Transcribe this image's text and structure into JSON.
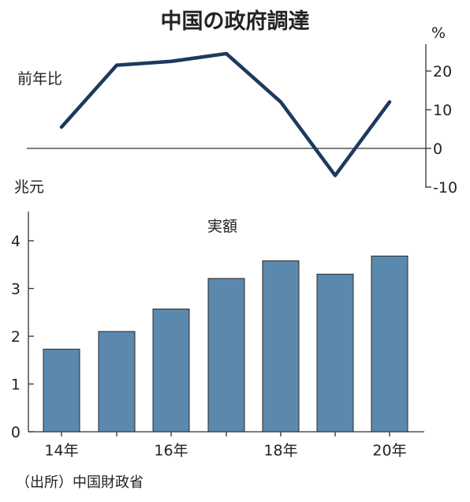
{
  "title": "中国の政府調達",
  "source": "（出所）中国財政省",
  "colors": {
    "line": "#1b3a5e",
    "bar": "#5b88ad",
    "axis": "#333333"
  },
  "chart_data": [
    {
      "type": "line",
      "label": "前年比",
      "unit": "%",
      "x": [
        2014,
        2015,
        2016,
        2017,
        2018,
        2019,
        2020
      ],
      "values": [
        5.5,
        21.5,
        22.5,
        24.5,
        12,
        -7,
        12
      ],
      "ylim": [
        -10,
        25
      ],
      "yticks": [
        -10,
        0,
        10,
        20
      ]
    },
    {
      "type": "bar",
      "label": "実額",
      "unit": "兆元",
      "categories": [
        "14年",
        "15",
        "16年",
        "17",
        "18年",
        "19",
        "20年"
      ],
      "x_tick_labels": [
        "14年",
        "",
        "16年",
        "",
        "18年",
        "",
        "20年"
      ],
      "values": [
        1.73,
        2.1,
        2.57,
        3.21,
        3.58,
        3.3,
        3.68
      ],
      "ylim": [
        0,
        4.3
      ],
      "yticks": [
        0,
        1,
        2,
        3,
        4
      ]
    }
  ]
}
